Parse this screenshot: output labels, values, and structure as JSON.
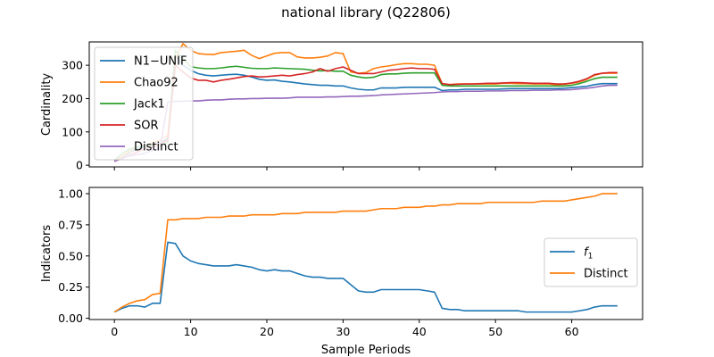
{
  "figure_title": "national library (Q22806)",
  "chart_data": [
    {
      "type": "line",
      "xlabel": "",
      "ylabel": "Cardinality",
      "xlim": [
        -3.3,
        69.3
      ],
      "ylim": [
        -5,
        370
      ],
      "yticks": [
        0,
        100,
        200,
        300
      ],
      "xticks": [
        0,
        10,
        20,
        30,
        40,
        50,
        60
      ],
      "show_x_tick_labels": false,
      "legend": "upper-left",
      "series": [
        {
          "name": "N1−UNIF",
          "color": "#1f77b4",
          "x": [
            0,
            1,
            2,
            3,
            4,
            5,
            6,
            7,
            8,
            9,
            10,
            11,
            12,
            13,
            14,
            15,
            16,
            17,
            18,
            19,
            20,
            21,
            22,
            23,
            24,
            25,
            26,
            27,
            28,
            29,
            30,
            31,
            32,
            33,
            34,
            35,
            36,
            37,
            38,
            39,
            40,
            41,
            42,
            43,
            44,
            45,
            46,
            47,
            48,
            49,
            50,
            51,
            52,
            53,
            54,
            55,
            56,
            57,
            58,
            59,
            60,
            61,
            62,
            63,
            64,
            65,
            66
          ],
          "values": [
            12,
            24,
            38,
            50,
            55,
            60,
            68,
            80,
            330,
            300,
            285,
            275,
            270,
            268,
            270,
            272,
            273,
            270,
            265,
            258,
            255,
            256,
            252,
            250,
            247,
            244,
            242,
            240,
            240,
            238,
            238,
            232,
            228,
            226,
            226,
            232,
            232,
            232,
            234,
            234,
            234,
            234,
            234,
            224,
            226,
            226,
            228,
            228,
            228,
            228,
            228,
            229,
            230,
            230,
            230,
            230,
            230,
            230,
            230,
            231,
            233,
            235,
            237,
            242,
            245,
            245,
            245
          ]
        },
        {
          "name": "Chao92",
          "color": "#ff7f0e",
          "x": [
            0,
            1,
            2,
            3,
            4,
            5,
            6,
            7,
            8,
            9,
            10,
            11,
            12,
            13,
            14,
            15,
            16,
            17,
            18,
            19,
            20,
            21,
            22,
            23,
            24,
            25,
            26,
            27,
            28,
            29,
            30,
            31,
            32,
            33,
            34,
            35,
            36,
            37,
            38,
            39,
            40,
            41,
            42,
            43,
            44,
            45,
            46,
            47,
            48,
            49,
            50,
            51,
            52,
            53,
            54,
            55,
            56,
            57,
            58,
            59,
            60,
            61,
            62,
            63,
            64,
            65,
            66
          ],
          "values": [
            12,
            26,
            42,
            55,
            60,
            66,
            75,
            90,
            320,
            365,
            345,
            335,
            333,
            332,
            338,
            340,
            342,
            345,
            330,
            320,
            328,
            336,
            338,
            338,
            325,
            322,
            322,
            324,
            328,
            338,
            335,
            280,
            276,
            278,
            290,
            295,
            298,
            302,
            305,
            305,
            303,
            303,
            300,
            245,
            242,
            244,
            244,
            244,
            244,
            244,
            244,
            246,
            246,
            245,
            245,
            244,
            244,
            244,
            242,
            243,
            246,
            250,
            258,
            270,
            276,
            276,
            276
          ]
        },
        {
          "name": "Jack1",
          "color": "#2ca02c",
          "x": [
            0,
            1,
            2,
            3,
            4,
            5,
            6,
            7,
            8,
            9,
            10,
            11,
            12,
            13,
            14,
            15,
            16,
            17,
            18,
            19,
            20,
            21,
            22,
            23,
            24,
            25,
            26,
            27,
            28,
            29,
            30,
            31,
            32,
            33,
            34,
            35,
            36,
            37,
            38,
            39,
            40,
            41,
            42,
            43,
            44,
            45,
            46,
            47,
            48,
            49,
            50,
            51,
            52,
            53,
            54,
            55,
            56,
            57,
            58,
            59,
            60,
            61,
            62,
            63,
            64,
            65,
            66
          ],
          "values": [
            14,
            35,
            48,
            55,
            58,
            60,
            62,
            68,
            345,
            320,
            296,
            292,
            290,
            290,
            292,
            295,
            297,
            294,
            291,
            290,
            290,
            292,
            291,
            290,
            289,
            288,
            285,
            283,
            284,
            282,
            282,
            270,
            265,
            262,
            264,
            272,
            274,
            274,
            276,
            277,
            277,
            277,
            277,
            240,
            238,
            238,
            238,
            238,
            238,
            238,
            238,
            238,
            238,
            238,
            238,
            238,
            238,
            238,
            238,
            238,
            240,
            245,
            252,
            260,
            264,
            264,
            264
          ]
        },
        {
          "name": "SOR",
          "color": "#d62728",
          "x": [
            0,
            1,
            2,
            3,
            4,
            5,
            6,
            7,
            8,
            9,
            10,
            11,
            12,
            13,
            14,
            15,
            16,
            17,
            18,
            19,
            20,
            21,
            22,
            23,
            24,
            25,
            26,
            27,
            28,
            29,
            30,
            31,
            32,
            33,
            34,
            35,
            36,
            37,
            38,
            39,
            40,
            41,
            42,
            43,
            44,
            45,
            46,
            47,
            48,
            49,
            50,
            51,
            52,
            53,
            54,
            55,
            56,
            57,
            58,
            59,
            60,
            61,
            62,
            63,
            64,
            65,
            66
          ],
          "values": [
            12,
            20,
            30,
            40,
            50,
            55,
            65,
            75,
            300,
            280,
            262,
            255,
            255,
            250,
            255,
            258,
            262,
            266,
            268,
            265,
            266,
            268,
            270,
            268,
            272,
            275,
            280,
            290,
            282,
            290,
            295,
            285,
            275,
            275,
            275,
            280,
            285,
            287,
            290,
            292,
            290,
            290,
            288,
            245,
            242,
            243,
            244,
            244,
            245,
            246,
            246,
            247,
            248,
            248,
            247,
            246,
            246,
            246,
            244,
            244,
            247,
            252,
            260,
            272,
            276,
            278,
            278
          ]
        },
        {
          "name": "Distinct",
          "color": "#9467bd",
          "x": [
            0,
            1,
            2,
            3,
            4,
            5,
            6,
            7,
            8,
            9,
            10,
            11,
            12,
            13,
            14,
            15,
            16,
            17,
            18,
            19,
            20,
            21,
            22,
            23,
            24,
            25,
            26,
            27,
            28,
            29,
            30,
            31,
            32,
            33,
            34,
            35,
            36,
            37,
            38,
            39,
            40,
            41,
            42,
            43,
            44,
            45,
            46,
            47,
            48,
            49,
            50,
            51,
            52,
            53,
            54,
            55,
            56,
            57,
            58,
            59,
            60,
            61,
            62,
            63,
            64,
            65,
            66
          ],
          "values": [
            12,
            20,
            28,
            32,
            36,
            45,
            50,
            190,
            192,
            192,
            193,
            193,
            195,
            196,
            196,
            198,
            199,
            199,
            200,
            200,
            201,
            201,
            201,
            202,
            204,
            204,
            204,
            204,
            205,
            205,
            206,
            207,
            207,
            208,
            209,
            211,
            212,
            213,
            214,
            215,
            216,
            217,
            218,
            220,
            221,
            221,
            222,
            222,
            222,
            223,
            223,
            223,
            224,
            224,
            224,
            225,
            225,
            225,
            226,
            226,
            227,
            229,
            231,
            234,
            238,
            240,
            240
          ]
        }
      ]
    },
    {
      "type": "line",
      "xlabel": "Sample Periods",
      "ylabel": "Indicators",
      "xlim": [
        -3.3,
        69.3
      ],
      "ylim": [
        -0.01,
        1.05
      ],
      "yticks": [
        0.0,
        0.25,
        0.5,
        0.75,
        1.0
      ],
      "yticklabels": [
        "0.00",
        "0.25",
        "0.50",
        "0.75",
        "1.00"
      ],
      "xticks": [
        0,
        10,
        20,
        30,
        40,
        50,
        60
      ],
      "show_x_tick_labels": true,
      "legend": "center-right",
      "series": [
        {
          "name": "f1",
          "color": "#1f77b4",
          "x": [
            0,
            1,
            2,
            3,
            4,
            5,
            6,
            7,
            8,
            9,
            10,
            11,
            12,
            13,
            14,
            15,
            16,
            17,
            18,
            19,
            20,
            21,
            22,
            23,
            24,
            25,
            26,
            27,
            28,
            29,
            30,
            31,
            32,
            33,
            34,
            35,
            36,
            37,
            38,
            39,
            40,
            41,
            42,
            43,
            44,
            45,
            46,
            47,
            48,
            49,
            50,
            51,
            52,
            53,
            54,
            55,
            56,
            57,
            58,
            59,
            60,
            61,
            62,
            63,
            64,
            65,
            66
          ],
          "values": [
            0.05,
            0.08,
            0.1,
            0.1,
            0.09,
            0.12,
            0.12,
            0.61,
            0.6,
            0.5,
            0.46,
            0.44,
            0.43,
            0.42,
            0.42,
            0.42,
            0.43,
            0.42,
            0.41,
            0.39,
            0.38,
            0.39,
            0.38,
            0.38,
            0.36,
            0.34,
            0.33,
            0.33,
            0.32,
            0.32,
            0.32,
            0.27,
            0.22,
            0.21,
            0.21,
            0.23,
            0.23,
            0.23,
            0.23,
            0.23,
            0.23,
            0.22,
            0.21,
            0.08,
            0.07,
            0.07,
            0.06,
            0.06,
            0.06,
            0.06,
            0.06,
            0.06,
            0.06,
            0.06,
            0.05,
            0.05,
            0.05,
            0.05,
            0.05,
            0.05,
            0.05,
            0.06,
            0.07,
            0.09,
            0.1,
            0.1,
            0.1
          ]
        },
        {
          "name": "Distinct",
          "color": "#ff7f0e",
          "x": [
            0,
            1,
            2,
            3,
            4,
            5,
            6,
            7,
            8,
            9,
            10,
            11,
            12,
            13,
            14,
            15,
            16,
            17,
            18,
            19,
            20,
            21,
            22,
            23,
            24,
            25,
            26,
            27,
            28,
            29,
            30,
            31,
            32,
            33,
            34,
            35,
            36,
            37,
            38,
            39,
            40,
            41,
            42,
            43,
            44,
            45,
            46,
            47,
            48,
            49,
            50,
            51,
            52,
            53,
            54,
            55,
            56,
            57,
            58,
            59,
            60,
            61,
            62,
            63,
            64,
            65,
            66
          ],
          "values": [
            0.05,
            0.09,
            0.12,
            0.14,
            0.15,
            0.19,
            0.2,
            0.79,
            0.79,
            0.8,
            0.8,
            0.8,
            0.81,
            0.81,
            0.81,
            0.82,
            0.82,
            0.82,
            0.83,
            0.83,
            0.83,
            0.83,
            0.84,
            0.84,
            0.84,
            0.85,
            0.85,
            0.85,
            0.85,
            0.85,
            0.86,
            0.86,
            0.86,
            0.86,
            0.87,
            0.88,
            0.88,
            0.88,
            0.89,
            0.89,
            0.89,
            0.9,
            0.9,
            0.91,
            0.91,
            0.92,
            0.92,
            0.92,
            0.92,
            0.93,
            0.93,
            0.93,
            0.93,
            0.93,
            0.93,
            0.93,
            0.94,
            0.94,
            0.94,
            0.94,
            0.95,
            0.96,
            0.97,
            0.98,
            1.0,
            1.0,
            1.0
          ]
        }
      ]
    }
  ]
}
